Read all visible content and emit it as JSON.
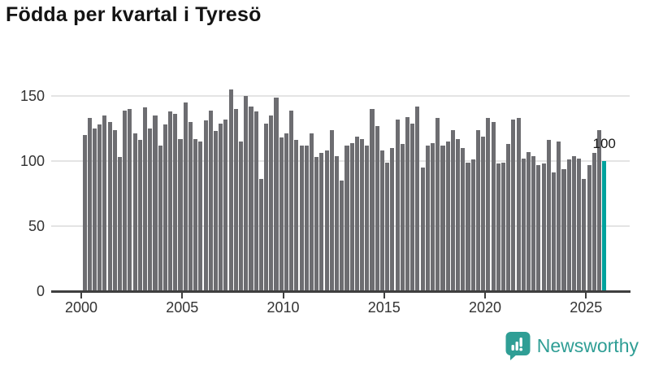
{
  "title": "Födda per kvartal i Tyresö",
  "colors": {
    "bar_gray": "#6d6d71",
    "highlight_teal": "#00a29d",
    "logo_teal": "#2f9e95",
    "grid": "#e4e4e4",
    "axis": "#3f3f3f"
  },
  "chart_data": {
    "type": "bar",
    "title": "Födda per kvartal i Tyresö",
    "x_start": "2000-Q1",
    "x_end": "2025-Q4",
    "period": "quarter",
    "values": [
      120,
      133,
      125,
      128,
      135,
      130,
      124,
      103,
      139,
      140,
      121,
      116,
      141,
      125,
      135,
      112,
      128,
      138,
      136,
      117,
      145,
      130,
      117,
      115,
      131,
      139,
      123,
      129,
      132,
      155,
      140,
      115,
      150,
      142,
      138,
      86,
      129,
      135,
      149,
      118,
      121,
      139,
      116,
      112,
      112,
      121,
      103,
      106,
      108,
      124,
      104,
      85,
      112,
      114,
      119,
      117,
      112,
      140,
      127,
      108,
      99,
      110,
      132,
      113,
      134,
      129,
      142,
      95,
      112,
      114,
      133,
      112,
      115,
      124,
      117,
      110,
      99,
      101,
      124,
      119,
      133,
      130,
      98,
      99,
      113,
      132,
      133,
      102,
      107,
      104,
      97,
      98,
      116,
      91,
      115,
      94,
      101,
      104,
      102,
      86,
      97,
      106,
      124,
      100
    ],
    "highlight_last": true,
    "last_value_label": "100",
    "x_ticks": [
      2000,
      2005,
      2010,
      2015,
      2020,
      2025
    ],
    "x_tick_labels": [
      "2000",
      "2005",
      "2010",
      "2015",
      "2020",
      "2025"
    ],
    "yticks": [
      0,
      50,
      100,
      150
    ],
    "y_tick_labels": [
      "0",
      "50",
      "100",
      "150"
    ],
    "ylim": [
      0,
      156
    ],
    "grid": "horizontal",
    "legend": "none"
  },
  "footer": {
    "brand": "Newsworthy"
  }
}
